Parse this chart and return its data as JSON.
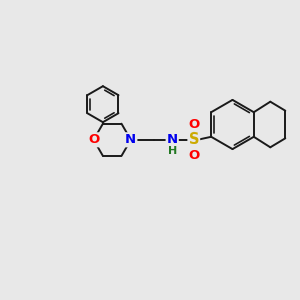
{
  "background_color": "#e8e8e8",
  "bond_color": "#1a1a1a",
  "bond_width": 1.4,
  "atom_colors": {
    "O": "#ff0000",
    "N": "#0000ee",
    "S": "#ccaa00",
    "H": "#227722",
    "C": "#1a1a1a"
  },
  "font_size_atom": 9.5,
  "font_size_H": 8.0
}
